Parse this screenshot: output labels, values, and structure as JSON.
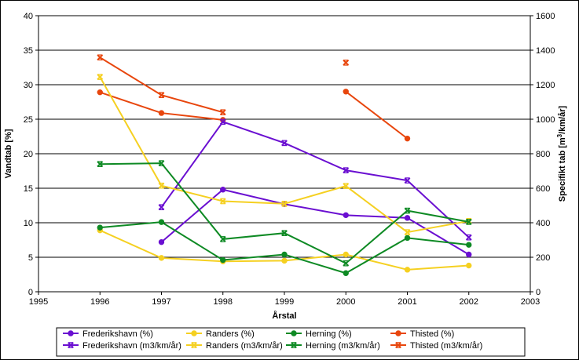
{
  "chart_data": {
    "type": "line",
    "xlabel": "Årstal",
    "ylabel_left": "Vandtab [%]",
    "ylabel_right_base": "Specifikt tab [m",
    "ylabel_right_sup": "3",
    "ylabel_right_tail": "/km/år]",
    "x_ticks": [
      "1995",
      "1996",
      "1997",
      "1998",
      "1999",
      "2000",
      "2001",
      "2002",
      "2003"
    ],
    "y_left_ticks": [
      "0",
      "5",
      "10",
      "15",
      "20",
      "25",
      "30",
      "35",
      "40"
    ],
    "y_right_ticks": [
      "0",
      "200",
      "400",
      "600",
      "800",
      "1000",
      "1200",
      "1400",
      "1600"
    ],
    "xlim": [
      1995,
      2003
    ],
    "ylim_left": [
      0,
      40
    ],
    "ylim_right": [
      0,
      1600
    ],
    "grid": "horizontal",
    "legend_position": "bottom",
    "series": [
      {
        "name": "Frederikshavn (%)",
        "axis": "left",
        "marker": "circle",
        "color": "#6a0fd1",
        "x": [
          1997,
          1998,
          1999,
          2000,
          2001,
          2002
        ],
        "y": [
          7.2,
          14.8,
          12.7,
          11.1,
          10.7,
          5.4
        ]
      },
      {
        "name": "Randers (%)",
        "axis": "left",
        "marker": "circle",
        "color": "#f5d021",
        "x": [
          1996,
          1997,
          1998,
          1999,
          2000,
          2001,
          2002
        ],
        "y": [
          8.9,
          4.9,
          4.4,
          4.5,
          5.4,
          3.2,
          3.8
        ]
      },
      {
        "name": "Herning (%)",
        "axis": "left",
        "marker": "circle",
        "color": "#0e8a24",
        "x": [
          1996,
          1997,
          1998,
          1999,
          2000,
          2001,
          2002
        ],
        "y": [
          9.3,
          10.1,
          4.6,
          5.4,
          2.7,
          7.8,
          6.8
        ]
      },
      {
        "name": "Thisted (%)",
        "axis": "left",
        "marker": "circle",
        "color": "#e8460d",
        "segments": [
          {
            "x": [
              1996,
              1997,
              1998
            ],
            "y": [
              28.9,
              25.9,
              24.9
            ]
          },
          {
            "x": [
              2000,
              2001
            ],
            "y": [
              29.0,
              22.2
            ]
          }
        ]
      },
      {
        "name": "Frederikshavn (m3/km/år)",
        "axis": "right",
        "marker": "x",
        "color": "#6a0fd1",
        "x": [
          1997,
          1998,
          1999,
          2000,
          2001,
          2002
        ],
        "y": [
          490,
          985,
          862,
          704,
          645,
          315
        ]
      },
      {
        "name": "Randers (m3/km/år)",
        "axis": "right",
        "marker": "x",
        "color": "#f5d021",
        "x": [
          1996,
          1997,
          1998,
          1999,
          2000,
          2001,
          2002
        ],
        "y": [
          1245,
          615,
          525,
          510,
          613,
          345,
          410
        ]
      },
      {
        "name": "Herning (m3/km/år)",
        "axis": "right",
        "marker": "x",
        "color": "#0e8a24",
        "x": [
          1996,
          1997,
          1998,
          1999,
          2000,
          2001,
          2002
        ],
        "y": [
          740,
          745,
          305,
          340,
          165,
          470,
          405
        ]
      },
      {
        "name": "Thisted (m3/km/år)",
        "axis": "right",
        "marker": "x",
        "color": "#e8460d",
        "segments": [
          {
            "x": [
              1996,
              1997,
              1998
            ],
            "y": [
              1358,
              1140,
              1040
            ]
          },
          {
            "x": [
              2000
            ],
            "y": [
              1328
            ]
          }
        ]
      }
    ]
  }
}
